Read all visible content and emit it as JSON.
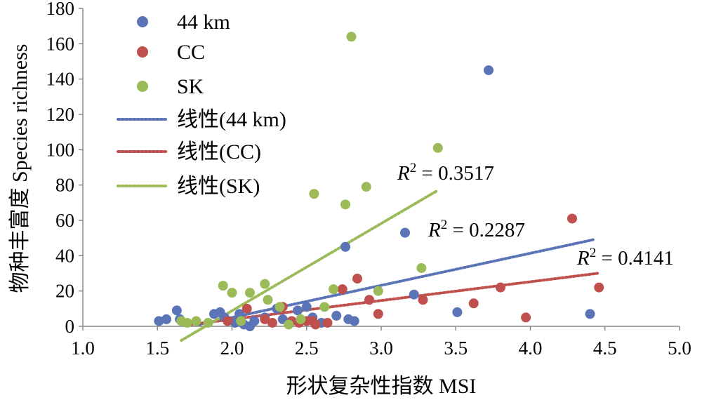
{
  "chart_data": {
    "type": "scatter",
    "title": "",
    "xlabel": "形状复杂性指数 MSI",
    "ylabel": "物种丰富度 Species richness",
    "xlim": [
      1.0,
      5.0
    ],
    "ylim": [
      0,
      180
    ],
    "xticks": [
      "1.0",
      "1.5",
      "2.0",
      "2.5",
      "3.0",
      "3.5",
      "4.0",
      "4.5",
      "5.0"
    ],
    "yticks": [
      "0",
      "20",
      "40",
      "60",
      "80",
      "100",
      "120",
      "140",
      "160",
      "180"
    ],
    "grid": false,
    "legend_position": "top-left",
    "series": [
      {
        "name": "44 km",
        "color": "#5b74b8",
        "points": [
          [
            1.51,
            3
          ],
          [
            1.56,
            4
          ],
          [
            1.63,
            9
          ],
          [
            1.65,
            4
          ],
          [
            1.88,
            7
          ],
          [
            1.92,
            8
          ],
          [
            1.95,
            5
          ],
          [
            2.02,
            2
          ],
          [
            2.05,
            7
          ],
          [
            2.08,
            1
          ],
          [
            2.12,
            0
          ],
          [
            2.15,
            3
          ],
          [
            2.22,
            5
          ],
          [
            2.3,
            10
          ],
          [
            2.34,
            4
          ],
          [
            2.44,
            9
          ],
          [
            2.5,
            11
          ],
          [
            2.54,
            5
          ],
          [
            2.6,
            2
          ],
          [
            2.7,
            6
          ],
          [
            2.76,
            45
          ],
          [
            2.78,
            4
          ],
          [
            2.82,
            3
          ],
          [
            3.16,
            53
          ],
          [
            3.22,
            18
          ],
          [
            3.51,
            8
          ],
          [
            3.72,
            145
          ],
          [
            4.4,
            7
          ]
        ],
        "trend": {
          "label": "线性(44 km)",
          "x_range": [
            1.78,
            4.42
          ],
          "y_range": [
            1,
            49
          ],
          "r2_label": "R",
          "r2_value": " = 0.2287"
        }
      },
      {
        "name": "CC",
        "color": "#c0504d",
        "points": [
          [
            1.97,
            3
          ],
          [
            2.1,
            10
          ],
          [
            2.22,
            4
          ],
          [
            2.27,
            2
          ],
          [
            2.34,
            11
          ],
          [
            2.4,
            3
          ],
          [
            2.45,
            2
          ],
          [
            2.5,
            3
          ],
          [
            2.54,
            3
          ],
          [
            2.56,
            1
          ],
          [
            2.64,
            2
          ],
          [
            2.74,
            21
          ],
          [
            2.84,
            27
          ],
          [
            2.92,
            15
          ],
          [
            2.98,
            7
          ],
          [
            3.28,
            15
          ],
          [
            3.62,
            13
          ],
          [
            3.8,
            22
          ],
          [
            3.97,
            5
          ],
          [
            4.28,
            61
          ],
          [
            4.46,
            22
          ]
        ],
        "trend": {
          "label": "线性(CC)",
          "x_range": [
            1.72,
            4.45
          ],
          "y_range": [
            1,
            30
          ],
          "r2_label": "R",
          "r2_value": " = 0.4141"
        }
      },
      {
        "name": "SK",
        "color": "#9bbb59",
        "points": [
          [
            1.66,
            3
          ],
          [
            1.7,
            2
          ],
          [
            1.76,
            3
          ],
          [
            1.84,
            2
          ],
          [
            1.94,
            23
          ],
          [
            2.0,
            19
          ],
          [
            2.06,
            3
          ],
          [
            2.12,
            19
          ],
          [
            2.22,
            24
          ],
          [
            2.24,
            15
          ],
          [
            2.32,
            11
          ],
          [
            2.38,
            1
          ],
          [
            2.46,
            4
          ],
          [
            2.55,
            75
          ],
          [
            2.62,
            11
          ],
          [
            2.68,
            21
          ],
          [
            2.76,
            69
          ],
          [
            2.8,
            164
          ],
          [
            2.9,
            79
          ],
          [
            2.98,
            20
          ],
          [
            3.27,
            33
          ],
          [
            3.38,
            101
          ]
        ],
        "trend": {
          "label": "线性(SK)",
          "x_range": [
            1.66,
            3.38
          ],
          "y_range": [
            -8,
            77
          ],
          "r2_label": "R",
          "r2_value": " = 0.3517"
        }
      }
    ]
  }
}
